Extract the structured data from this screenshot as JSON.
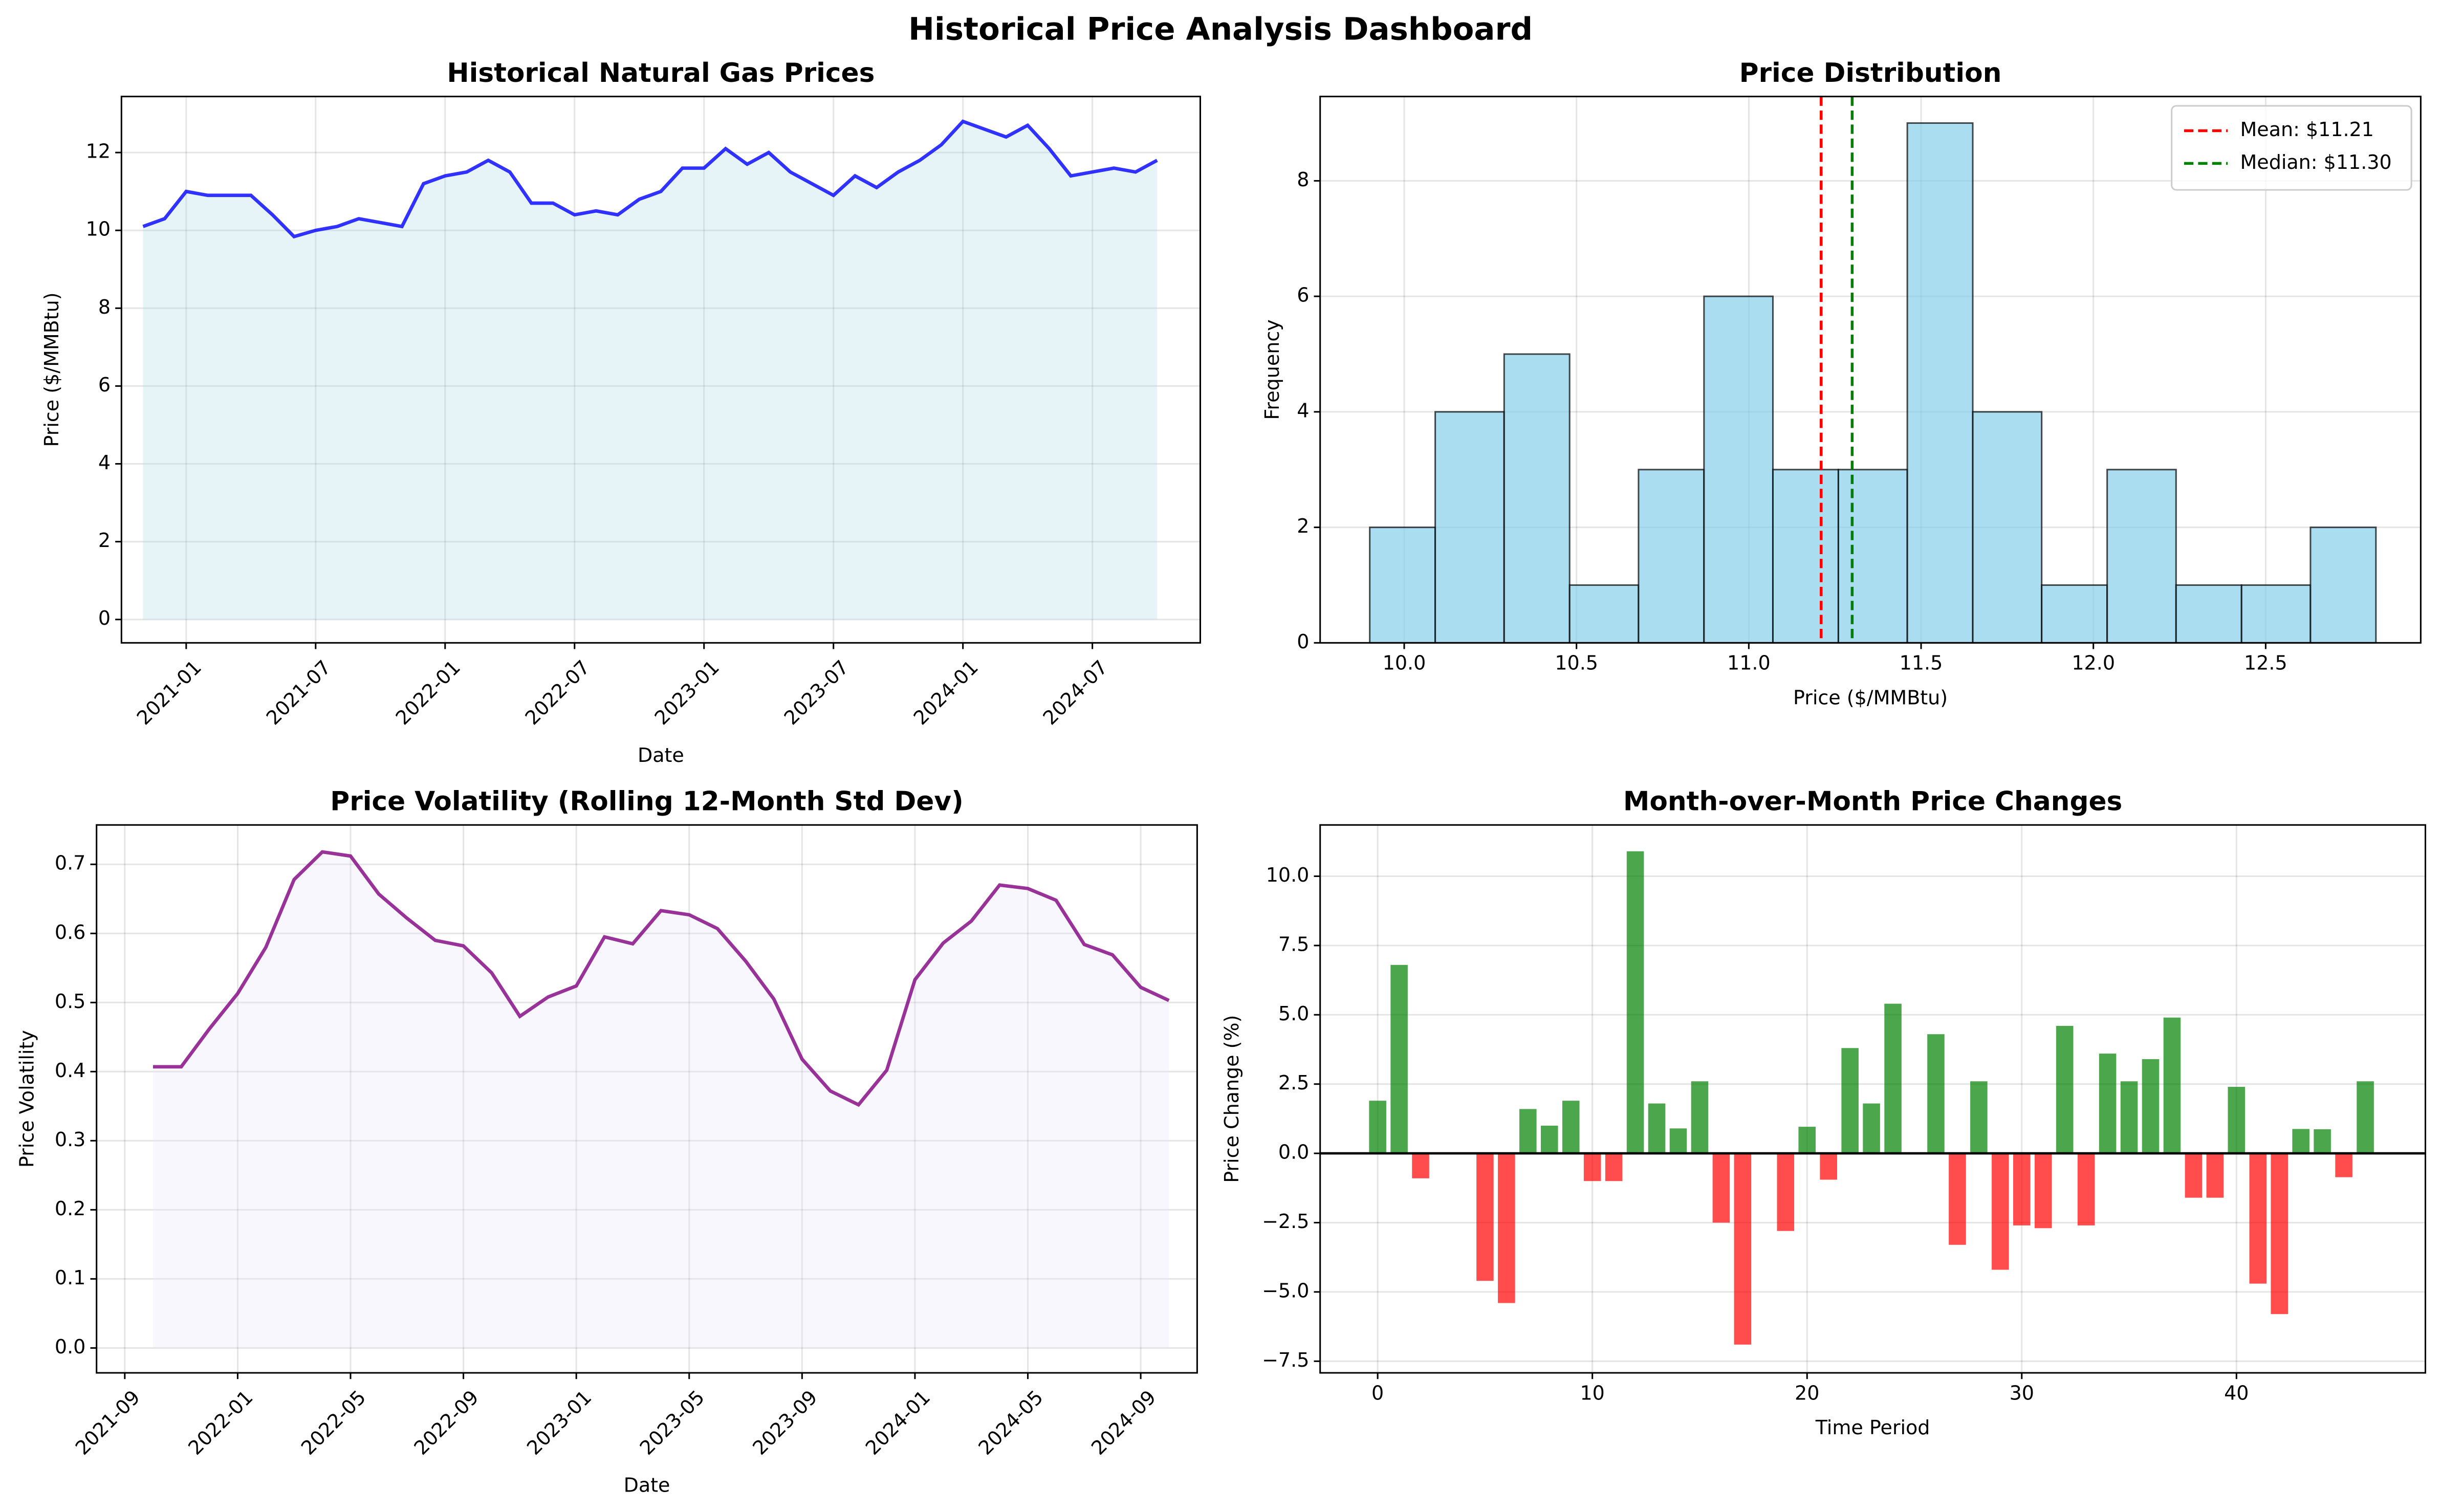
{
  "title": "Historical Price Analysis Dashboard",
  "chart_data": [
    {
      "type": "line",
      "title": "Historical Natural Gas Prices",
      "xlabel": "Date",
      "ylabel": "Price ($/MMBtu)",
      "x": [
        "2020-10",
        "2020-11",
        "2020-12",
        "2021-01",
        "2021-02",
        "2021-03",
        "2021-04",
        "2021-05",
        "2021-06",
        "2021-07",
        "2021-08",
        "2021-09",
        "2021-10",
        "2021-11",
        "2021-12",
        "2022-01",
        "2022-02",
        "2022-03",
        "2022-04",
        "2022-05",
        "2022-06",
        "2022-07",
        "2022-08",
        "2022-09",
        "2022-10",
        "2022-11",
        "2022-12",
        "2023-01",
        "2023-02",
        "2023-03",
        "2023-04",
        "2023-05",
        "2023-06",
        "2023-07",
        "2023-08",
        "2023-09",
        "2023-10",
        "2023-11",
        "2023-12",
        "2024-01",
        "2024-02",
        "2024-03",
        "2024-04",
        "2024-05",
        "2024-06",
        "2024-07",
        "2024-08",
        "2024-09"
      ],
      "values": [
        10.1,
        10.3,
        11.0,
        10.9,
        10.9,
        10.9,
        10.4,
        9.84,
        10.0,
        10.1,
        10.3,
        10.2,
        10.1,
        11.2,
        11.4,
        11.5,
        11.8,
        11.5,
        10.7,
        10.7,
        10.4,
        10.5,
        10.4,
        10.8,
        11.0,
        11.6,
        11.6,
        12.1,
        11.7,
        12.0,
        11.5,
        11.2,
        10.9,
        11.4,
        11.1,
        11.5,
        11.8,
        12.2,
        12.8,
        12.6,
        12.4,
        12.7,
        12.1,
        11.4,
        11.5,
        11.6,
        11.5,
        11.8
      ],
      "color": "blue",
      "fill_color": "lightblue",
      "xlim": [
        "2020-10",
        "2024-12"
      ],
      "xticks": [
        "2021-01",
        "2021-07",
        "2022-01",
        "2022-07",
        "2023-01",
        "2023-07",
        "2024-01",
        "2024-07"
      ],
      "ylim": [
        -0.6,
        13.44
      ],
      "yticks": [
        0,
        2,
        4,
        6,
        8,
        10,
        12
      ],
      "grid": true
    },
    {
      "type": "histogram",
      "title": "Price Distribution",
      "xlabel": "Price ($/MMBtu)",
      "ylabel": "Frequency",
      "bins": [
        9.9,
        10.09,
        10.29,
        10.48,
        10.68,
        10.87,
        11.07,
        11.26,
        11.46,
        11.65,
        11.85,
        12.04,
        12.24,
        12.43,
        12.63,
        12.82
      ],
      "values": [
        2,
        4,
        5,
        1,
        3,
        6,
        3,
        3,
        9,
        4,
        1,
        3,
        1,
        1,
        2
      ],
      "color": "skyblue",
      "reference_lines": [
        {
          "name": "Mean: $11.21",
          "value": 11.21,
          "color": "red"
        },
        {
          "name": "Median: $11.30",
          "value": 11.3,
          "color": "green"
        }
      ],
      "legend": "upper right",
      "xlim": [
        9.756,
        12.95
      ],
      "xticks": [
        {
          "value": 10.0,
          "label": "10.0"
        },
        {
          "value": 10.5,
          "label": "10.5"
        },
        {
          "value": 11.0,
          "label": "11.0"
        },
        {
          "value": 11.5,
          "label": "11.5"
        },
        {
          "value": 12.0,
          "label": "12.0"
        },
        {
          "value": 12.5,
          "label": "12.5"
        }
      ],
      "ylim": [
        0,
        9.46
      ],
      "yticks": [
        0,
        2,
        4,
        6,
        8
      ],
      "grid": true
    },
    {
      "type": "line",
      "title": "Price Volatility (Rolling 12-Month Std Dev)",
      "xlabel": "Date",
      "ylabel": "Price Volatility",
      "x": [
        "2021-09",
        "2021-10",
        "2021-11",
        "2021-12",
        "2022-01",
        "2022-02",
        "2022-03",
        "2022-04",
        "2022-05",
        "2022-06",
        "2022-07",
        "2022-08",
        "2022-09",
        "2022-10",
        "2022-11",
        "2022-12",
        "2023-01",
        "2023-02",
        "2023-03",
        "2023-04",
        "2023-05",
        "2023-06",
        "2023-07",
        "2023-08",
        "2023-09",
        "2023-10",
        "2023-11",
        "2023-12",
        "2024-01",
        "2024-02",
        "2024-03",
        "2024-04",
        "2024-05",
        "2024-06",
        "2024-07",
        "2024-08",
        "2024-09"
      ],
      "values": [
        0.407,
        0.407,
        0.462,
        0.513,
        0.58,
        0.678,
        0.718,
        0.712,
        0.657,
        0.622,
        0.59,
        0.582,
        0.543,
        0.48,
        0.508,
        0.524,
        0.595,
        0.585,
        0.633,
        0.627,
        0.607,
        0.56,
        0.505,
        0.418,
        0.372,
        0.352,
        0.402,
        0.533,
        0.586,
        0.618,
        0.67,
        0.665,
        0.648,
        0.584,
        0.569,
        0.522,
        0.503
      ],
      "color": "purple",
      "fill_color": "lavender",
      "xlim": [
        "2021-08",
        "2024-11"
      ],
      "xticks": [
        "2021-09",
        "2022-01",
        "2022-05",
        "2022-09",
        "2023-01",
        "2023-05",
        "2023-09",
        "2024-01",
        "2024-05",
        "2024-09"
      ],
      "ylim": [
        -0.036,
        0.757
      ],
      "yticks": [
        {
          "value": 0,
          "label": "0.0"
        },
        0.1,
        0.2,
        0.3,
        0.4,
        0.5,
        0.6,
        0.7
      ],
      "grid": true
    },
    {
      "type": "bar",
      "title": "Month-over-Month Price Changes",
      "xlabel": "Time Period",
      "ylabel": "Price Change (%)",
      "x": [
        0,
        1,
        2,
        3,
        4,
        5,
        6,
        7,
        8,
        9,
        10,
        11,
        12,
        13,
        14,
        15,
        16,
        17,
        18,
        19,
        20,
        21,
        22,
        23,
        24,
        25,
        26,
        27,
        28,
        29,
        30,
        31,
        32,
        33,
        34,
        35,
        36,
        37,
        38,
        39,
        40,
        41,
        42,
        43,
        44,
        45,
        46
      ],
      "values": [
        1.9,
        6.8,
        -0.9,
        0,
        0,
        -4.6,
        -5.4,
        1.6,
        1.0,
        1.9,
        -1.0,
        -1.0,
        10.9,
        1.8,
        0.9,
        2.6,
        -2.5,
        -6.9,
        0,
        -2.8,
        0.96,
        -0.95,
        3.8,
        1.8,
        5.4,
        0,
        4.3,
        -3.3,
        2.6,
        -4.2,
        -2.6,
        -2.7,
        4.6,
        -2.6,
        3.6,
        2.6,
        3.4,
        4.9,
        -1.6,
        -1.6,
        2.4,
        -4.7,
        -5.8,
        0.88,
        0.87,
        -0.86,
        2.6
      ],
      "positive_color": "green",
      "negative_color": "red",
      "xlim": [
        -2.68,
        48.8
      ],
      "xticks": [
        0,
        10,
        20,
        30,
        40
      ],
      "ylim": [
        -7.92,
        11.85
      ],
      "yticks": [
        {
          "value": -7.5,
          "label": "−7.5"
        },
        {
          "value": -5.0,
          "label": "−5.0"
        },
        {
          "value": -2.5,
          "label": "−2.5"
        },
        {
          "value": 0.0,
          "label": "0.0"
        },
        {
          "value": 2.5,
          "label": "2.5"
        },
        {
          "value": 5.0,
          "label": "5.0"
        },
        {
          "value": 7.5,
          "label": "7.5"
        },
        {
          "value": 10.0,
          "label": "10.0"
        }
      ],
      "grid": true
    }
  ]
}
